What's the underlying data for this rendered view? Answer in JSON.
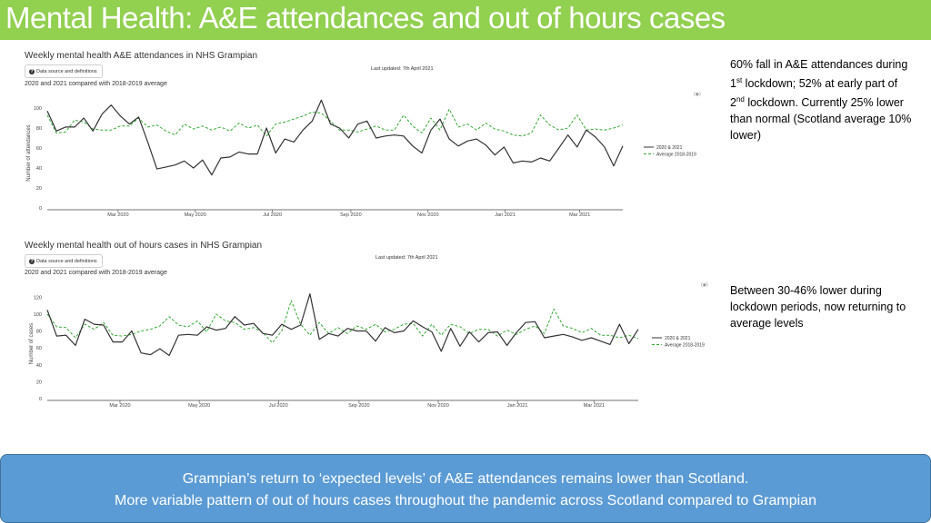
{
  "slide": {
    "title": "Mental Health: A&E attendances and out of hours cases",
    "accent_color": "#92d050",
    "summary_color": "#5b9bd5",
    "summary_line1": "Grampian’s return to ‘expected levels’ of A&E attendances remains lower than Scotland.",
    "summary_line2": "More variable pattern of out of hours cases throughout the pandemic across Scotland compared to Grampian"
  },
  "notes": {
    "ae_pre1": "60% fall in A&E attendances during 1",
    "ae_sup1": "st",
    "ae_mid": " lockdown; 52% at early part of 2",
    "ae_sup2": "nd",
    "ae_post": " lockdown. Currently 25% lower than normal (Scotland average 10% lower)",
    "ooh": "Between 30-46% lower during lockdown periods, now returning to average levels"
  },
  "panels": {
    "ae": {
      "heading": "Weekly mental health A&E attendances in NHS Grampian",
      "button": "Data source and definitions",
      "button_icon": "question-icon",
      "subtitle": "2020 and 2021 compared with 2018-2019 average",
      "updated": "Last updated: 7th April 2021",
      "camera_icon": "camera-icon"
    },
    "ooh": {
      "heading": "Weekly mental health out of hours cases in NHS Grampian",
      "button": "Data source and definitions",
      "button_icon": "question-icon",
      "subtitle": "2020 and 2021 compared with 2018-2019 average",
      "updated": "Last updated: 7th April 2021",
      "camera_icon": "camera-icon"
    }
  },
  "chart_data": [
    {
      "type": "line",
      "ylabel": "Number of attendances",
      "xlabel": "",
      "ylim": [
        0,
        110
      ],
      "yticks": [
        0,
        20,
        40,
        60,
        80,
        100
      ],
      "x_start": "2020-01-05",
      "x_end": "2021-04-04",
      "x_ticks": [
        {
          "date": "2020-03-01",
          "label": "Mar 2020"
        },
        {
          "date": "2020-05-01",
          "label": "May 2020"
        },
        {
          "date": "2020-07-01",
          "label": "Jul 2020"
        },
        {
          "date": "2020-09-01",
          "label": "Sep 2020"
        },
        {
          "date": "2020-11-01",
          "label": "Nov 2020"
        },
        {
          "date": "2021-01-01",
          "label": "Jan 2021"
        },
        {
          "date": "2021-03-01",
          "label": "Mar 2021"
        }
      ],
      "grid": false,
      "legend_position": "right",
      "series": [
        {
          "name": "2020 & 2021",
          "color": "#333333",
          "dash": "solid",
          "values": [
            97,
            77,
            81,
            81,
            90,
            77,
            94,
            103,
            92,
            84,
            91,
            66,
            39,
            41,
            43,
            47,
            40,
            48,
            33,
            50,
            51,
            56,
            54,
            54,
            80,
            55,
            69,
            66,
            78,
            87,
            108,
            84,
            80,
            70,
            84,
            87,
            70,
            72,
            73,
            72,
            62,
            55,
            78,
            89,
            69,
            62,
            67,
            69,
            63,
            53,
            61,
            45,
            47,
            46,
            50,
            47,
            60,
            73,
            61,
            78,
            71,
            61,
            42,
            62
          ]
        },
        {
          "name": "Average 2018-2019",
          "color": "#33aa33",
          "dash": "dashed",
          "values": [
            93,
            75,
            76,
            88,
            86,
            79,
            78,
            78,
            82,
            82,
            90,
            81,
            83,
            77,
            73,
            84,
            79,
            82,
            78,
            81,
            77,
            85,
            80,
            83,
            72,
            84,
            86,
            89,
            92,
            96,
            95,
            87,
            78,
            78,
            76,
            79,
            82,
            78,
            78,
            93,
            82,
            75,
            90,
            78,
            99,
            81,
            84,
            78,
            85,
            79,
            77,
            73,
            72,
            75,
            93,
            83,
            78,
            80,
            93,
            78,
            79,
            78,
            80,
            83
          ]
        }
      ]
    },
    {
      "type": "line",
      "ylabel": "Number of cases",
      "xlabel": "",
      "ylim": [
        0,
        130
      ],
      "yticks": [
        0,
        20,
        40,
        60,
        80,
        100,
        120
      ],
      "x_start": "2020-01-05",
      "x_end": "2021-04-04",
      "x_ticks": [
        {
          "date": "2020-03-01",
          "label": "Mar 2020"
        },
        {
          "date": "2020-05-01",
          "label": "May 2020"
        },
        {
          "date": "2020-07-01",
          "label": "Jul 2020"
        },
        {
          "date": "2020-09-01",
          "label": "Sep 2020"
        },
        {
          "date": "2020-11-01",
          "label": "Nov 2020"
        },
        {
          "date": "2021-01-01",
          "label": "Jan 2021"
        },
        {
          "date": "2021-03-01",
          "label": "Mar 2021"
        }
      ],
      "grid": false,
      "legend_position": "right",
      "series": [
        {
          "name": "2020 & 2021",
          "color": "#333333",
          "dash": "solid",
          "values": [
            105,
            74,
            75,
            63,
            94,
            88,
            87,
            67,
            67,
            80,
            54,
            52,
            59,
            51,
            75,
            76,
            75,
            85,
            81,
            83,
            97,
            87,
            89,
            77,
            75,
            88,
            82,
            87,
            124,
            70,
            77,
            74,
            83,
            80,
            80,
            68,
            84,
            78,
            80,
            92,
            85,
            79,
            56,
            83,
            62,
            79,
            67,
            78,
            79,
            63,
            78,
            90,
            91,
            72,
            74,
            76,
            73,
            69,
            72,
            68,
            64,
            88,
            65,
            82
          ]
        },
        {
          "name": "Average 2018-2019",
          "color": "#33aa33",
          "dash": "dashed",
          "values": [
            100,
            85,
            84,
            72,
            88,
            82,
            90,
            75,
            74,
            76,
            80,
            82,
            86,
            97,
            87,
            85,
            92,
            79,
            100,
            92,
            90,
            82,
            84,
            78,
            66,
            80,
            116,
            88,
            75,
            90,
            77,
            84,
            77,
            86,
            82,
            88,
            79,
            82,
            88,
            89,
            74,
            88,
            75,
            88,
            85,
            77,
            82,
            82,
            74,
            81,
            76,
            82,
            86,
            77,
            106,
            86,
            83,
            78,
            83,
            75,
            75,
            72,
            75,
            71
          ]
        }
      ]
    }
  ]
}
